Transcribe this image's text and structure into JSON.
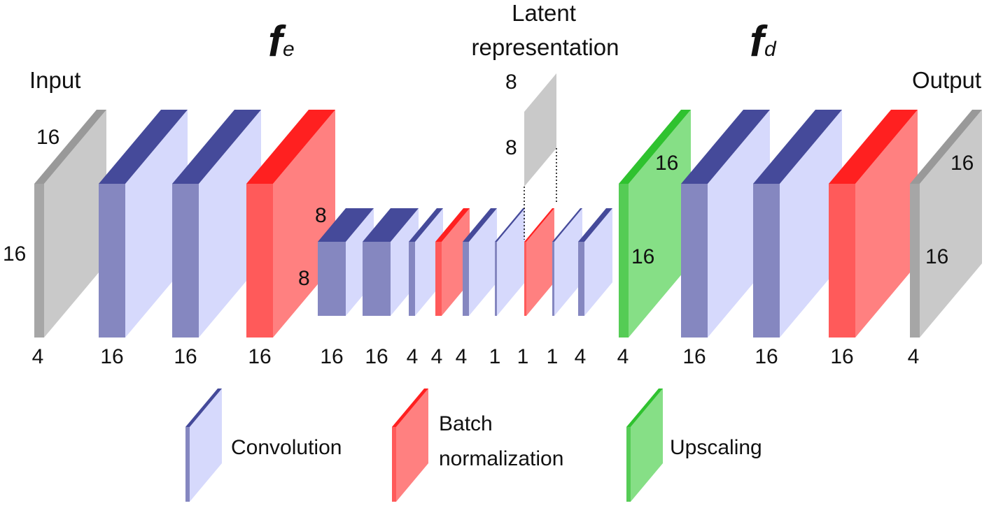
{
  "titles": {
    "input": "Input",
    "output": "Output",
    "latent_line1": "Latent",
    "latent_line2": "representation",
    "encoder_symbol": "f",
    "encoder_subscript": "e",
    "decoder_symbol": "f",
    "decoder_subscript": "d"
  },
  "colors": {
    "input": {
      "front": "#c9c9c9",
      "top": "#999999",
      "side": "#a6a6a6"
    },
    "conv": {
      "front": "#d6d9fc",
      "top": "#454a9a",
      "side": "#8587c0"
    },
    "batchnorm": {
      "front": "#ff8080",
      "top": "#ff2020",
      "side": "#ff5a5a"
    },
    "upscale": {
      "front": "#86df86",
      "top": "#2fc22f",
      "side": "#55cc55"
    }
  },
  "layers": [
    {
      "id": "input",
      "kind": "input",
      "channels": "4"
    },
    {
      "id": "enc-conv-1",
      "kind": "conv",
      "channels": "16"
    },
    {
      "id": "enc-conv-2",
      "kind": "conv",
      "channels": "16"
    },
    {
      "id": "enc-bn-1",
      "kind": "batchnorm",
      "channels": "16"
    },
    {
      "id": "enc-conv-3",
      "kind": "conv",
      "channels": "16"
    },
    {
      "id": "enc-conv-4",
      "kind": "conv",
      "channels": "16"
    },
    {
      "id": "enc-conv-5",
      "kind": "conv",
      "channels": "4"
    },
    {
      "id": "enc-bn-2",
      "kind": "batchnorm",
      "channels": "4"
    },
    {
      "id": "enc-conv-6",
      "kind": "conv",
      "channels": "4"
    },
    {
      "id": "enc-conv-7",
      "kind": "conv",
      "channels": "1"
    },
    {
      "id": "latent-bn",
      "kind": "batchnorm",
      "channels": "1"
    },
    {
      "id": "dec-conv-1",
      "kind": "conv",
      "channels": "1"
    },
    {
      "id": "dec-conv-2",
      "kind": "conv",
      "channels": "4"
    },
    {
      "id": "dec-upscale",
      "kind": "upscale",
      "channels": "4"
    },
    {
      "id": "dec-conv-3",
      "kind": "conv",
      "channels": "16"
    },
    {
      "id": "dec-conv-4",
      "kind": "conv",
      "channels": "16"
    },
    {
      "id": "dec-bn",
      "kind": "batchnorm",
      "channels": "16"
    },
    {
      "id": "output",
      "kind": "input",
      "channels": "4"
    }
  ],
  "dimension_labels": {
    "input_width": "16",
    "input_height": "16",
    "mid_width": "8",
    "mid_height": "8",
    "latent_width": "8",
    "latent_height": "8",
    "upscale_width": "16",
    "upscale_height": "16",
    "output_width": "16",
    "output_height": "16"
  },
  "legend": [
    {
      "kind": "conv",
      "line1": "Convolution",
      "line2": ""
    },
    {
      "kind": "batchnorm",
      "line1": "Batch",
      "line2": "normalization"
    },
    {
      "kind": "upscale",
      "line1": "Upscaling",
      "line2": ""
    }
  ]
}
